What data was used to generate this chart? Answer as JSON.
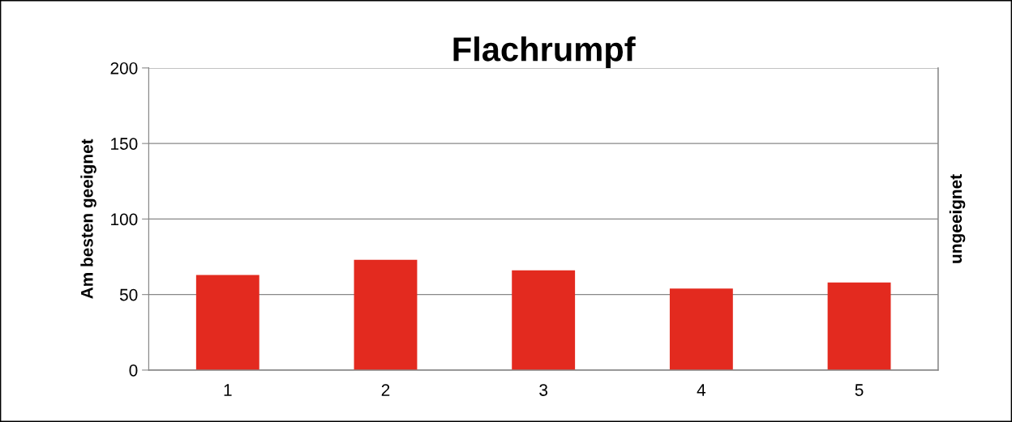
{
  "chart_data": {
    "type": "bar",
    "title": "Flachrumpf",
    "ylabel": "Am besten geeignet",
    "y2label": "ungeeignet",
    "categories": [
      "1",
      "2",
      "3",
      "4",
      "5"
    ],
    "values": [
      63,
      73,
      66,
      54,
      58
    ],
    "color": "#e32a1f",
    "ylim": [
      0,
      200
    ],
    "yticks": [
      0,
      50,
      100,
      150,
      200
    ],
    "grid": "y"
  }
}
